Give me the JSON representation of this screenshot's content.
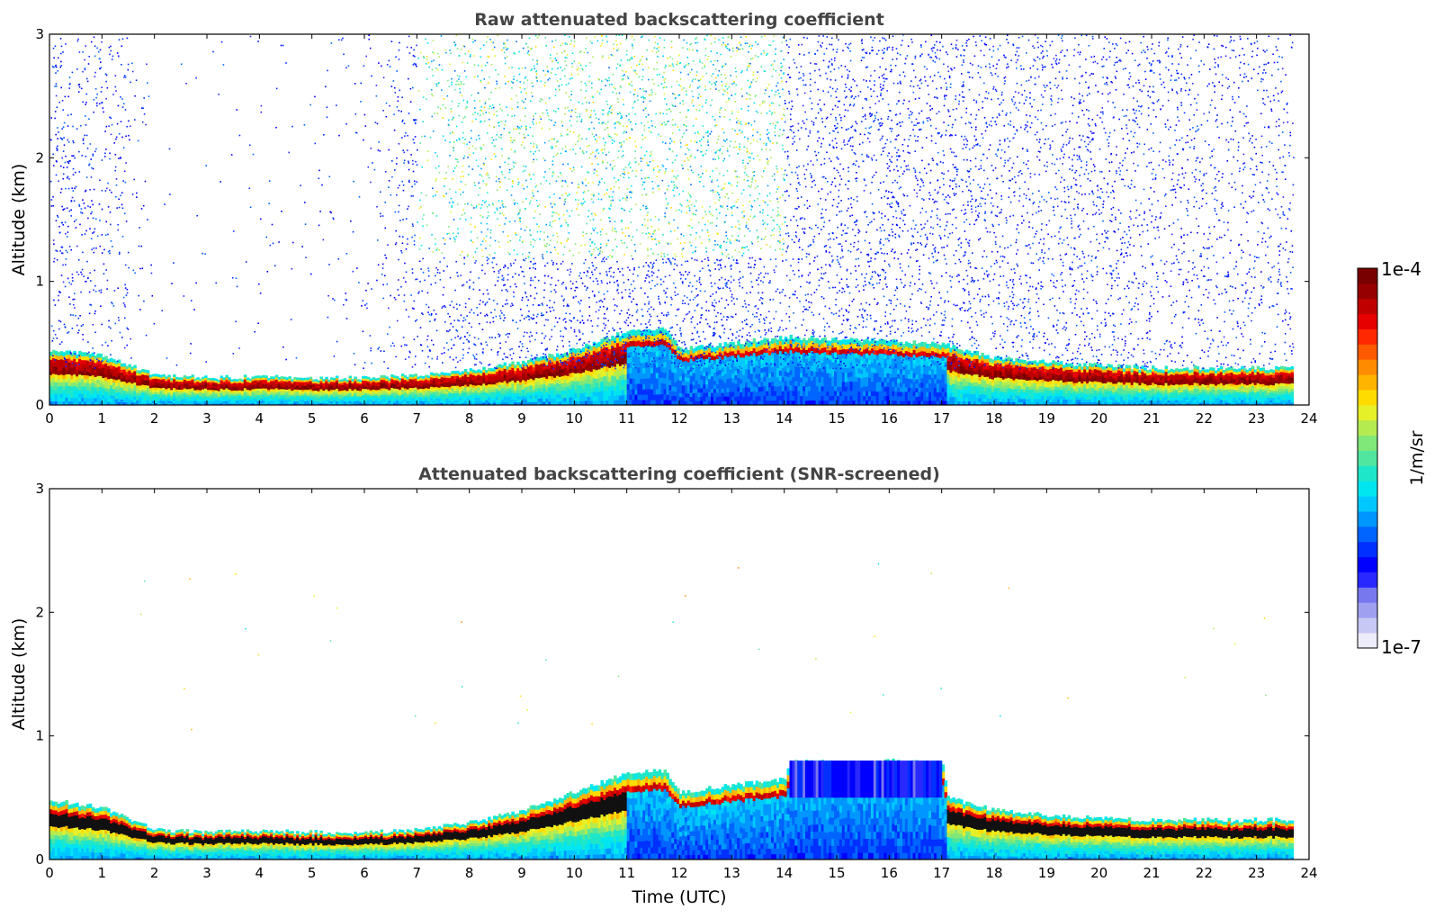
{
  "chart_data": [
    {
      "type": "heatmap",
      "title": "Raw attenuated backscattering coefficient",
      "xlabel": "",
      "ylabel": "Altitude (km)",
      "xlim": [
        0,
        24
      ],
      "ylim": [
        0,
        3
      ],
      "xticks": [
        "0",
        "1",
        "2",
        "3",
        "4",
        "5",
        "6",
        "7",
        "8",
        "9",
        "10",
        "11",
        "12",
        "13",
        "14",
        "15",
        "16",
        "17",
        "18",
        "19",
        "20",
        "21",
        "22",
        "23",
        "24"
      ],
      "yticks": [
        "0",
        "1",
        "2",
        "3"
      ],
      "layer_top_km": [
        [
          0,
          0.45
        ],
        [
          1,
          0.4
        ],
        [
          2,
          0.24
        ],
        [
          3,
          0.22
        ],
        [
          4,
          0.23
        ],
        [
          5,
          0.22
        ],
        [
          6,
          0.22
        ],
        [
          7,
          0.24
        ],
        [
          8,
          0.28
        ],
        [
          9,
          0.35
        ],
        [
          10,
          0.45
        ],
        [
          11,
          0.6
        ],
        [
          11.7,
          0.62
        ],
        [
          12,
          0.45
        ],
        [
          13,
          0.5
        ],
        [
          14,
          0.55
        ],
        [
          17,
          0.5
        ],
        [
          18,
          0.38
        ],
        [
          19,
          0.35
        ],
        [
          20,
          0.32
        ],
        [
          21,
          0.3
        ],
        [
          22,
          0.3
        ],
        [
          23,
          0.3
        ],
        [
          23.7,
          0.3
        ]
      ],
      "noise_density": [
        [
          0,
          0.7
        ],
        [
          1,
          0.6
        ],
        [
          2,
          0.05
        ],
        [
          4,
          0.05
        ],
        [
          5,
          0.05
        ],
        [
          6,
          0.15
        ],
        [
          7,
          0.5
        ],
        [
          8,
          0.8
        ],
        [
          9,
          1
        ],
        [
          10,
          1
        ],
        [
          11,
          1
        ],
        [
          12,
          1
        ],
        [
          13,
          1
        ],
        [
          14,
          0.9
        ],
        [
          16,
          0.9
        ],
        [
          17,
          0.8
        ],
        [
          18,
          0.8
        ],
        [
          20,
          0.7
        ],
        [
          22,
          0.6
        ],
        [
          23.7,
          0.5
        ]
      ]
    },
    {
      "type": "heatmap",
      "title": "Attenuated backscattering coefficient (SNR-screened)",
      "xlabel": "Time (UTC)",
      "ylabel": "Altitude (km)",
      "xlim": [
        0,
        24
      ],
      "ylim": [
        0,
        3
      ],
      "xticks": [
        "0",
        "1",
        "2",
        "3",
        "4",
        "5",
        "6",
        "7",
        "8",
        "9",
        "10",
        "11",
        "12",
        "13",
        "14",
        "15",
        "16",
        "17",
        "18",
        "19",
        "20",
        "21",
        "22",
        "23",
        "24"
      ],
      "yticks": [
        "0",
        "1",
        "2",
        "3"
      ],
      "layer_top_km": [
        [
          0,
          0.48
        ],
        [
          1,
          0.42
        ],
        [
          2,
          0.24
        ],
        [
          3,
          0.22
        ],
        [
          4,
          0.23
        ],
        [
          5,
          0.22
        ],
        [
          6,
          0.22
        ],
        [
          7,
          0.24
        ],
        [
          8,
          0.3
        ],
        [
          9,
          0.4
        ],
        [
          10,
          0.55
        ],
        [
          11,
          0.7
        ],
        [
          11.7,
          0.72
        ],
        [
          12,
          0.55
        ],
        [
          13,
          0.6
        ],
        [
          14,
          0.65
        ],
        [
          14.1,
          0.8
        ],
        [
          15,
          0.78
        ],
        [
          16,
          0.8
        ],
        [
          17,
          0.78
        ],
        [
          17.1,
          0.5
        ],
        [
          18,
          0.4
        ],
        [
          19,
          0.36
        ],
        [
          20,
          0.33
        ],
        [
          21,
          0.32
        ],
        [
          22,
          0.32
        ],
        [
          23,
          0.32
        ],
        [
          23.7,
          0.32
        ]
      ]
    }
  ],
  "colorbar": {
    "label": "1/m/sr",
    "max_label": "1e-4",
    "min_label": "1e-7",
    "colors": [
      "#ececfa",
      "#c8c8f5",
      "#a0a0f0",
      "#7878ee",
      "#2828ff",
      "#0000ff",
      "#0030ff",
      "#0064ff",
      "#0096ff",
      "#00c8ff",
      "#00e6f0",
      "#1ee6c8",
      "#50e6a0",
      "#80e878",
      "#b4ec50",
      "#e6f028",
      "#ffdc00",
      "#ffb400",
      "#ff8c00",
      "#ff5a00",
      "#ff2800",
      "#e60000",
      "#c00000",
      "#960000",
      "#780000"
    ]
  }
}
